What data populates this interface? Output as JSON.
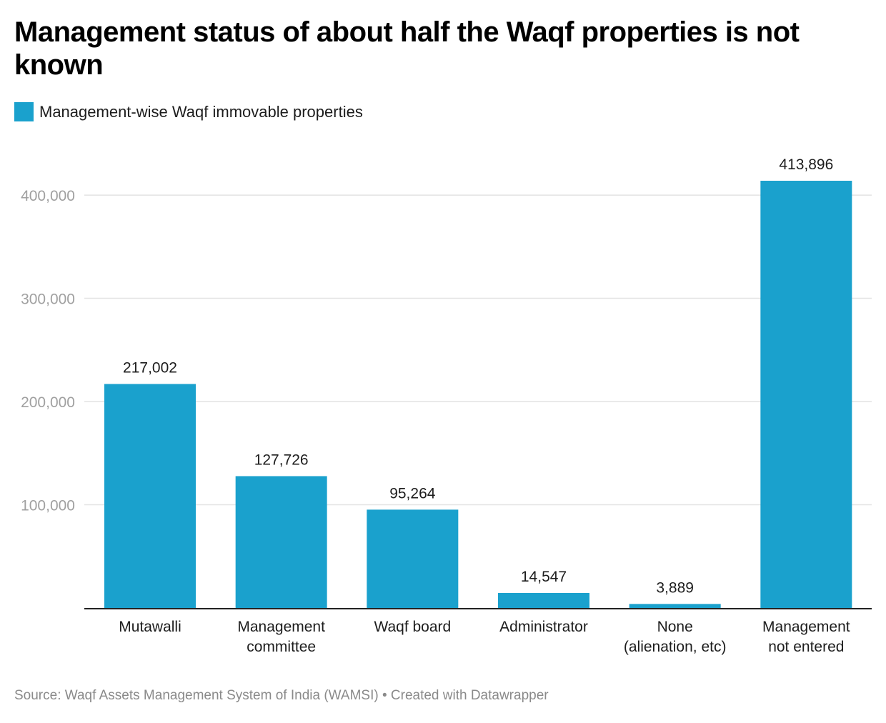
{
  "title": "Management status of about half the Waqf properties is not known",
  "legend": {
    "label": "Management-wise Waqf immovable properties",
    "color": "#1aa1cd"
  },
  "footer": {
    "source": "Source: Waqf Assets Management System of India (WAMSI)",
    "separator": " • ",
    "credit": "Created with Datawrapper"
  },
  "chart_data": {
    "type": "bar",
    "title": "Management status of about half the Waqf properties is not known",
    "xlabel": "",
    "ylabel": "",
    "categories": [
      [
        "Mutawalli"
      ],
      [
        "Management",
        "committee"
      ],
      [
        "Waqf board"
      ],
      [
        "Administrator"
      ],
      [
        "None",
        "(alienation, etc)"
      ],
      [
        "Management",
        "not entered"
      ]
    ],
    "series": [
      {
        "name": "Management-wise Waqf immovable properties",
        "values": [
          217002,
          127726,
          95264,
          14547,
          3889,
          413896
        ],
        "color": "#1aa1cd"
      }
    ],
    "value_labels": [
      "217,002",
      "127,726",
      "95,264",
      "14,547",
      "3,889",
      "413,896"
    ],
    "yticks": [
      100000,
      200000,
      300000,
      400000
    ],
    "ytick_labels": [
      "100,000",
      "200,000",
      "300,000",
      "400,000"
    ],
    "ylim": [
      0,
      413896
    ],
    "grid": true,
    "legend_position": "top-left"
  }
}
